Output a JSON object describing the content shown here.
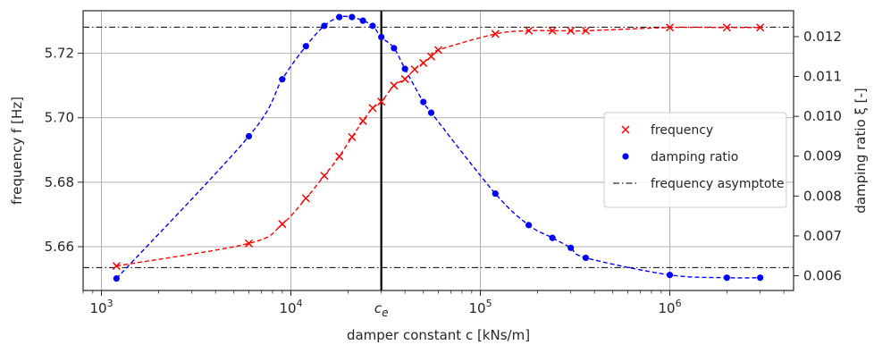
{
  "chart_data": {
    "type": "line",
    "xlabel": "damper constant c [kNs/m]",
    "ylabel": "frequency f [Hz]",
    "ylabel_right": "damping ratio ξ [-]",
    "x_scale": "log",
    "xlim": [
      800,
      4500000
    ],
    "ylim": [
      5.6464,
      5.7332
    ],
    "ylim_right": [
      0.00563,
      0.01265
    ],
    "x_ticks": [
      {
        "value": 1000,
        "label": "10^3"
      },
      {
        "value": 10000,
        "label": "10^4"
      },
      {
        "value": 100000,
        "label": "10^5"
      },
      {
        "value": 1000000,
        "label": "10^6"
      }
    ],
    "x_tick_special": {
      "value": 30000,
      "label": "c_e"
    },
    "y_ticks": [
      "5.66",
      "5.68",
      "5.70",
      "5.72"
    ],
    "y_ticks_right": [
      "0.006",
      "0.007",
      "0.008",
      "0.009",
      "0.010",
      "0.011",
      "0.012"
    ],
    "grid": true,
    "legend_position": "center-right",
    "colors": {
      "frequency": "#ff0000",
      "damping": "#0000ff",
      "asymptote": "#000000"
    },
    "series": [
      {
        "name": "frequency",
        "axis": "left",
        "marker": "x",
        "color": "#ff0000",
        "x": [
          1200,
          6000,
          9000,
          12000,
          15000,
          18000,
          21000,
          24000,
          27000,
          30000,
          35000,
          40000,
          45000,
          50000,
          55000,
          60000,
          120000,
          180000,
          240000,
          300000,
          360000,
          1000000,
          2000000,
          3000000
        ],
        "y": [
          5.654,
          5.661,
          5.667,
          5.675,
          5.682,
          5.688,
          5.694,
          5.699,
          5.703,
          5.705,
          5.71,
          5.712,
          5.715,
          5.717,
          5.719,
          5.721,
          5.726,
          5.727,
          5.727,
          5.727,
          5.727,
          5.728,
          5.728,
          5.728
        ]
      },
      {
        "name": "damping ratio",
        "axis": "right",
        "marker": "o",
        "color": "#0000ff",
        "x": [
          1200,
          6000,
          9000,
          12000,
          15000,
          18000,
          21000,
          24000,
          27000,
          30000,
          35000,
          40000,
          50000,
          55000,
          120000,
          180000,
          240000,
          300000,
          360000,
          1000000,
          2000000,
          3000000
        ],
        "y": [
          0.00593,
          0.0095,
          0.01093,
          0.01176,
          0.01227,
          0.01249,
          0.01249,
          0.0124,
          0.01227,
          0.01199,
          0.01171,
          0.01119,
          0.01036,
          0.01009,
          0.00806,
          0.00727,
          0.00695,
          0.0067,
          0.00645,
          0.00602,
          0.00595,
          0.00595
        ]
      }
    ],
    "reference_lines": [
      {
        "name": "frequency asymptote",
        "axis": "left",
        "y": 5.7281,
        "style": "dash-dot",
        "color": "#000000"
      },
      {
        "axis": "left",
        "y": 5.6535,
        "style": "dash-dot",
        "color": "#000000"
      },
      {
        "axis": "x",
        "x": 30000,
        "style": "solid",
        "color": "#000000"
      }
    ],
    "legend": [
      "frequency",
      "damping ratio",
      "frequency asymptote"
    ]
  }
}
